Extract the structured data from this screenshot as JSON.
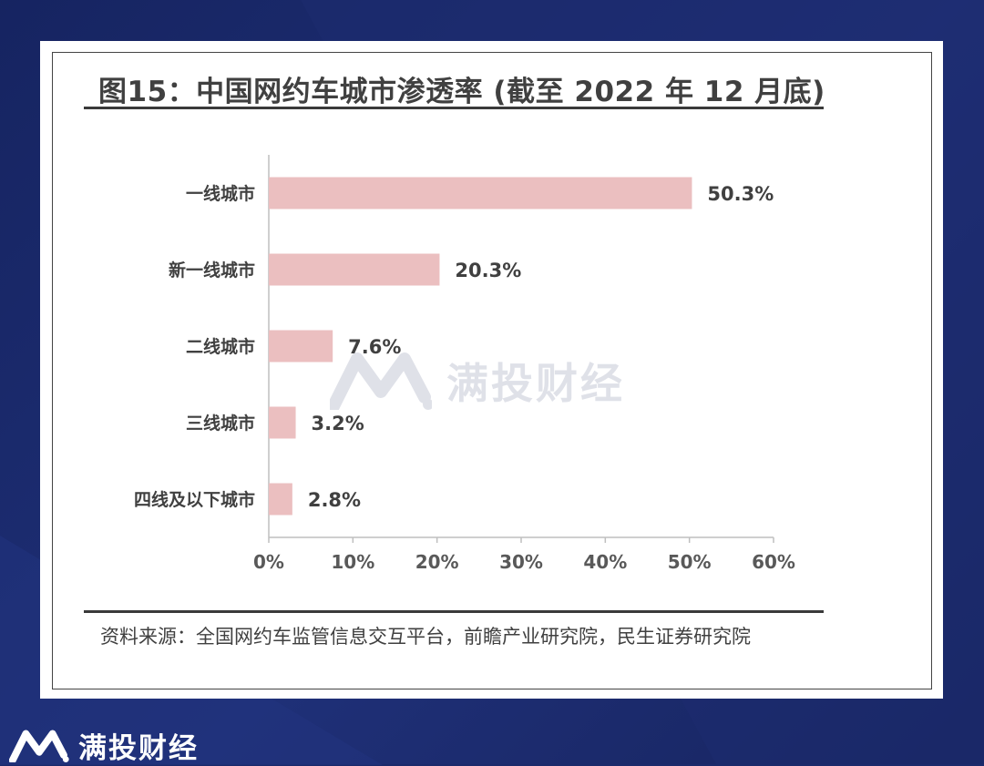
{
  "figure": {
    "title": "图15：中国网约车城市渗透率 (截至 2022 年 12 月底)",
    "source_note": "资料来源：全国网约车监管信息交互平台，前瞻产业研究院，民生证券研究院"
  },
  "watermark": {
    "text": "满投财经",
    "icon": "brand-m-logo-icon"
  },
  "brand": {
    "text": "满投财经",
    "icon": "brand-m-logo-icon"
  },
  "colors": {
    "bar": "#ebbfc0",
    "page_bg": "#1b2a6b",
    "axis": "#bfbfbf"
  },
  "chart_data": {
    "type": "bar",
    "orientation": "horizontal",
    "categories": [
      "一线城市",
      "新一线城市",
      "二线城市",
      "三线城市",
      "四线及以下城市"
    ],
    "values": [
      50.3,
      20.3,
      7.6,
      3.2,
      2.8
    ],
    "value_labels": [
      "50.3%",
      "20.3%",
      "7.6%",
      "3.2%",
      "2.8%"
    ],
    "xlim": [
      0,
      60
    ],
    "xticks": [
      "0%",
      "10%",
      "20%",
      "30%",
      "40%",
      "50%",
      "60%"
    ],
    "grid": false,
    "legend": "none"
  }
}
